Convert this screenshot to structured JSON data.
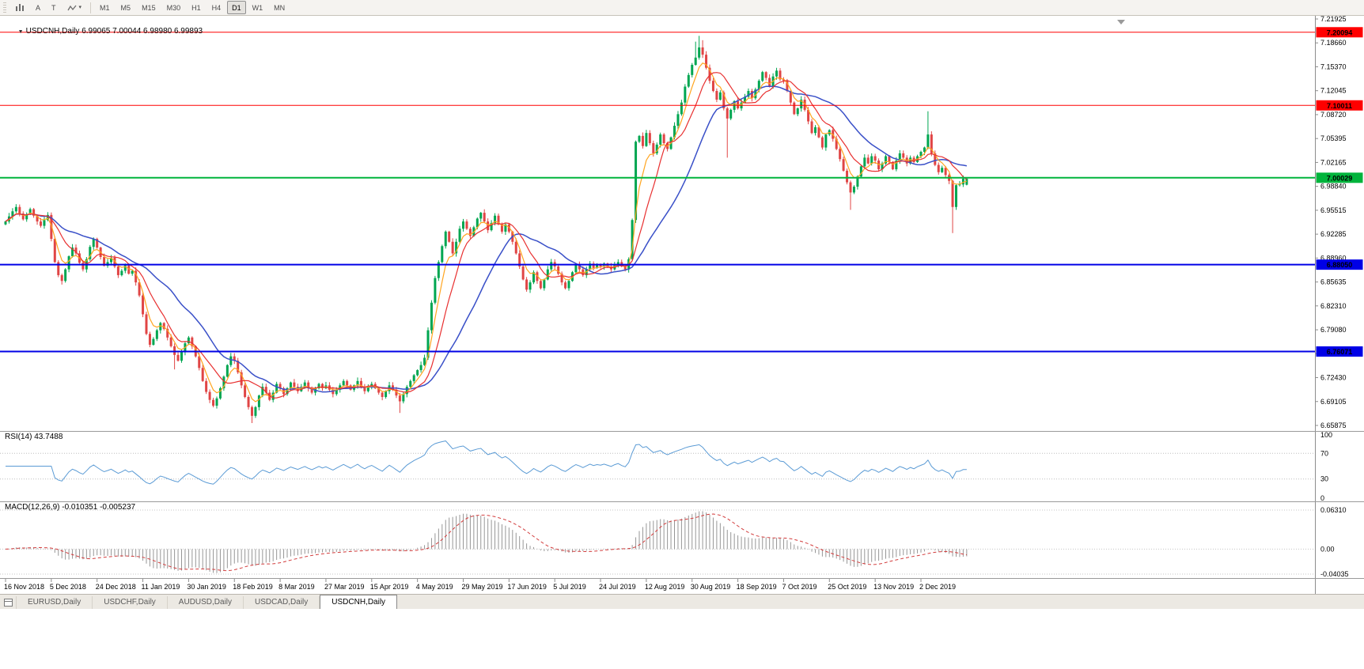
{
  "window": {
    "symbol_period": "USDCNH,Daily",
    "ohlc_text": "6.99065 7.00044 6.98980 6.99893",
    "dropdown_glyph": "▼"
  },
  "toolbar": {
    "icons": [
      {
        "name": "bar-chart-icon"
      },
      {
        "name": "text-tool-a",
        "label": "A"
      },
      {
        "name": "text-tool-t",
        "label": "T"
      },
      {
        "name": "zigzag-tool-icon"
      }
    ],
    "timeframes": [
      "M1",
      "M5",
      "M15",
      "M30",
      "H1",
      "H4",
      "D1",
      "W1",
      "MN"
    ],
    "active_timeframe": "D1"
  },
  "tabs": {
    "items": [
      "EURUSD,Daily",
      "USDCHF,Daily",
      "AUDUSD,Daily",
      "USDCAD,Daily",
      "USDCNH,Daily"
    ],
    "active_index": 4
  },
  "chart_data": {
    "type": "candlestick",
    "symbol": "USDCNH",
    "timeframe": "Daily",
    "current": {
      "open": 6.99065,
      "high": 7.00044,
      "low": 6.9898,
      "close": 6.99893
    },
    "price_range": {
      "top": 7.21925,
      "bottom": 6.65875
    },
    "y_axis_labels": [
      "7.21925",
      "7.18660",
      "7.15370",
      "7.12045",
      "7.08720",
      "7.05395",
      "7.02165",
      "6.98840",
      "6.95515",
      "6.92285",
      "6.88960",
      "6.85635",
      "6.82310",
      "6.79080",
      "6.75755",
      "6.72430",
      "6.69105",
      "6.65875"
    ],
    "x_axis_labels": [
      "16 Nov 2018",
      "5 Dec 2018",
      "24 Dec 2018",
      "11 Jan 2019",
      "30 Jan 2019",
      "18 Feb 2019",
      "8 Mar 2019",
      "27 Mar 2019",
      "15 Apr 2019",
      "4 May 2019",
      "29 May 2019",
      "17 Jun 2019",
      "5 Jul 2019",
      "24 Jul 2019",
      "12 Aug 2019",
      "30 Aug 2019",
      "18 Sep 2019",
      "7 Oct 2019",
      "25 Oct 2019",
      "13 Nov 2019",
      "2 Dec 2019"
    ],
    "bars_per_x_label": 13,
    "levels": [
      {
        "value": 7.20094,
        "label": "7.20094",
        "color": "#FF0000",
        "width": 1
      },
      {
        "value": 7.10011,
        "label": "7.10011",
        "color": "#FF0000",
        "width": 1
      },
      {
        "value": 7.00029,
        "label": "7.00029",
        "color": "#00B43C",
        "width": 2
      },
      {
        "value": 6.8805,
        "label": "6.88050",
        "color": "#0000E6",
        "width": 2
      },
      {
        "value": 6.76071,
        "label": "6.76071",
        "color": "#0000E6",
        "width": 2
      }
    ],
    "overlays": [
      {
        "name": "ma-fast",
        "type": "ema",
        "period": 5,
        "color": "#FFA520"
      },
      {
        "name": "ma-mid",
        "type": "sma",
        "period": 10,
        "color": "#E83030"
      },
      {
        "name": "ma-slow",
        "type": "sma",
        "period": 24,
        "color": "#3A50C8"
      }
    ],
    "indicators": [
      {
        "name": "RSI",
        "label": "RSI(14) 43.7488",
        "period": 14,
        "value": 43.7488,
        "range": [
          0,
          100
        ],
        "level_lines": [
          70,
          30
        ],
        "axis_labels": [
          "100",
          "70",
          "30",
          "0"
        ],
        "color": "#5B9BD5"
      },
      {
        "name": "MACD",
        "label": "MACD(12,26,9) -0.010351 -0.005237",
        "fast": 12,
        "slow": 26,
        "signal": 9,
        "macd_value": -0.010351,
        "signal_value": -0.005237,
        "axis_labels": [
          "0.06310",
          "0.00",
          "-0.04035"
        ],
        "axis_values": [
          0.0631,
          0.0,
          -0.04035
        ],
        "hist_color": "#969696",
        "signal_color": "#D23B3B"
      }
    ],
    "colors": {
      "up": "#00A651",
      "down": "#E04545"
    },
    "closes": [
      6.94,
      6.947,
      6.954,
      6.96,
      6.951,
      6.943,
      6.95,
      6.957,
      6.948,
      6.94,
      6.934,
      6.942,
      6.949,
      6.916,
      6.884,
      6.866,
      6.858,
      6.874,
      6.892,
      6.904,
      6.896,
      6.883,
      6.874,
      6.888,
      6.905,
      6.916,
      6.904,
      6.891,
      6.879,
      6.884,
      6.89,
      6.878,
      6.866,
      6.872,
      6.88,
      6.868,
      6.872,
      6.856,
      6.838,
      6.812,
      6.785,
      6.77,
      6.778,
      6.79,
      6.8,
      6.792,
      6.78,
      6.768,
      6.756,
      6.748,
      6.76,
      6.772,
      6.78,
      6.768,
      6.754,
      6.738,
      6.72,
      6.705,
      6.694,
      6.686,
      6.696,
      6.71,
      6.726,
      6.742,
      6.754,
      6.748,
      6.732,
      6.714,
      6.698,
      6.684,
      6.672,
      6.684,
      6.7,
      6.712,
      6.704,
      6.694,
      6.704,
      6.716,
      6.71,
      6.702,
      6.71,
      6.718,
      6.712,
      6.706,
      6.712,
      6.718,
      6.71,
      6.704,
      6.71,
      6.716,
      6.71,
      6.714,
      6.708,
      6.702,
      6.708,
      6.714,
      6.72,
      6.714,
      6.708,
      6.714,
      6.72,
      6.712,
      6.706,
      6.712,
      6.716,
      6.71,
      6.704,
      6.698,
      6.706,
      6.714,
      6.708,
      6.7,
      6.692,
      6.702,
      6.712,
      6.72,
      6.728,
      6.735,
      6.742,
      6.752,
      6.79,
      6.828,
      6.862,
      6.884,
      6.906,
      6.926,
      6.912,
      6.896,
      6.912,
      6.93,
      6.94,
      6.93,
      6.92,
      6.932,
      6.944,
      6.952,
      6.94,
      6.928,
      6.938,
      6.948,
      6.936,
      6.926,
      6.936,
      6.926,
      6.912,
      6.896,
      6.878,
      6.86,
      6.846,
      6.856,
      6.87,
      6.858,
      6.848,
      6.86,
      6.874,
      6.884,
      6.878,
      6.868,
      6.856,
      6.848,
      6.858,
      6.87,
      6.88,
      6.874,
      6.866,
      6.874,
      6.882,
      6.876,
      6.88,
      6.878,
      6.882,
      6.878,
      6.874,
      6.88,
      6.884,
      6.878,
      6.874,
      6.888,
      6.942,
      7.05,
      7.058,
      7.044,
      7.062,
      7.048,
      7.034,
      7.046,
      7.06,
      7.048,
      7.04,
      7.056,
      7.072,
      7.088,
      7.104,
      7.126,
      7.142,
      7.156,
      7.166,
      7.18,
      7.17,
      7.152,
      7.134,
      7.12,
      7.108,
      7.118,
      7.096,
      7.082,
      7.094,
      7.106,
      7.096,
      7.104,
      7.112,
      7.12,
      7.11,
      7.122,
      7.134,
      7.146,
      7.138,
      7.126,
      7.14,
      7.148,
      7.136,
      7.134,
      7.12,
      7.104,
      7.088,
      7.096,
      7.108,
      7.094,
      7.078,
      7.062,
      7.07,
      7.056,
      7.042,
      7.06,
      7.066,
      7.054,
      7.04,
      7.026,
      7.01,
      6.994,
      6.98,
      6.988,
      7.002,
      7.016,
      7.028,
      7.02,
      7.03,
      7.024,
      7.012,
      7.02,
      7.03,
      7.022,
      7.012,
      7.024,
      7.034,
      7.028,
      7.02,
      7.028,
      7.022,
      7.03,
      7.036,
      7.042,
      7.06,
      7.034,
      7.018,
      7.008,
      7.014,
      7.004,
      6.996,
      6.96,
      6.99,
      6.991,
      6.999,
      6.99893
    ],
    "ohlc_overrides": {
      "16": {
        "l": 6.853
      },
      "48": {
        "l": 6.736
      },
      "70": {
        "l": 6.662
      },
      "112": {
        "l": 6.676
      },
      "196": {
        "h": 7.188
      },
      "197": {
        "h": 7.196
      },
      "198": {
        "h": 7.19
      },
      "205": {
        "l": 7.028
      },
      "240": {
        "l": 6.956
      },
      "262": {
        "h": 7.092
      },
      "269": {
        "l": 6.924
      },
      "273": {
        "o": 6.99065,
        "h": 7.00044,
        "l": 6.9898
      }
    }
  }
}
